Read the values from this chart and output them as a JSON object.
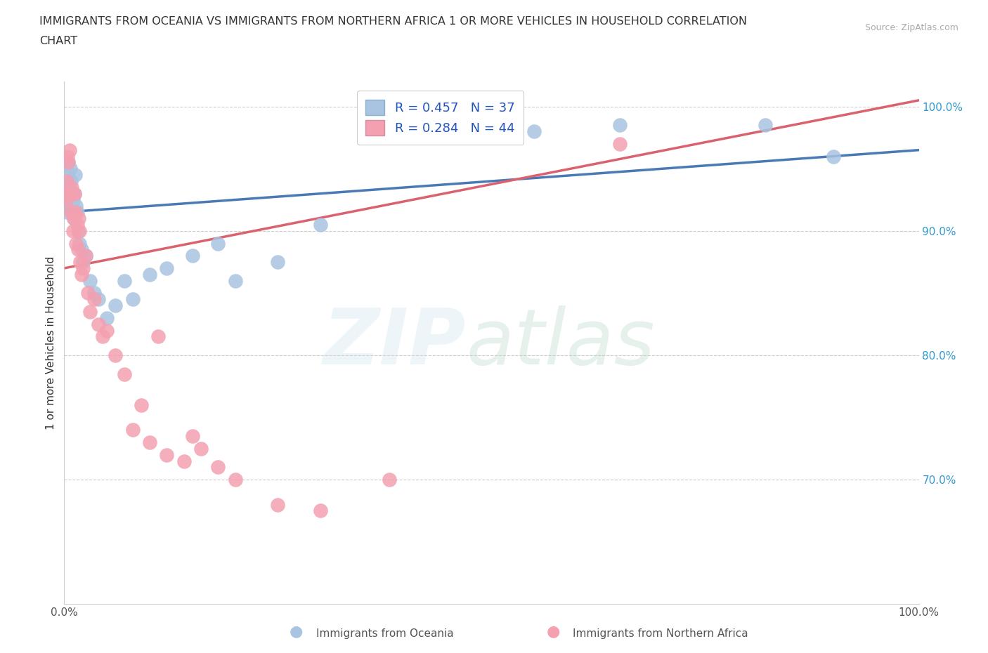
{
  "title": "IMMIGRANTS FROM OCEANIA VS IMMIGRANTS FROM NORTHERN AFRICA 1 OR MORE VEHICLES IN HOUSEHOLD CORRELATION\nCHART",
  "source": "Source: ZipAtlas.com",
  "ylabel": "1 or more Vehicles in Household",
  "xlim": [
    0.0,
    100.0
  ],
  "ylim": [
    60.0,
    102.0
  ],
  "blue_R": 0.457,
  "blue_N": 37,
  "pink_R": 0.284,
  "pink_N": 44,
  "blue_color": "#a8c4e0",
  "pink_color": "#f4a0b0",
  "blue_line_color": "#4a7ab5",
  "pink_line_color": "#d9626e",
  "legend_label_blue": "Immigrants from Oceania",
  "legend_label_pink": "Immigrants from Northern Africa",
  "blue_x": [
    0.2,
    0.3,
    0.4,
    0.5,
    0.6,
    0.7,
    0.8,
    0.9,
    1.0,
    1.1,
    1.2,
    1.3,
    1.4,
    1.5,
    1.6,
    1.8,
    2.0,
    2.2,
    2.5,
    3.0,
    3.5,
    4.0,
    5.0,
    6.0,
    7.0,
    8.0,
    10.0,
    12.0,
    15.0,
    18.0,
    20.0,
    25.0,
    30.0,
    55.0,
    65.0,
    82.0,
    90.0
  ],
  "blue_y": [
    92.0,
    91.5,
    94.5,
    95.5,
    93.5,
    95.0,
    94.0,
    93.0,
    92.5,
    91.0,
    93.0,
    94.5,
    92.0,
    91.5,
    90.0,
    89.0,
    88.5,
    87.5,
    88.0,
    86.0,
    85.0,
    84.5,
    83.0,
    84.0,
    86.0,
    84.5,
    86.5,
    87.0,
    88.0,
    89.0,
    86.0,
    87.5,
    90.5,
    98.0,
    98.5,
    98.5,
    96.0
  ],
  "pink_x": [
    0.1,
    0.2,
    0.3,
    0.4,
    0.5,
    0.6,
    0.7,
    0.8,
    0.9,
    1.0,
    1.1,
    1.2,
    1.3,
    1.4,
    1.5,
    1.6,
    1.7,
    1.8,
    1.9,
    2.0,
    2.2,
    2.5,
    2.8,
    3.0,
    3.5,
    4.0,
    4.5,
    5.0,
    6.0,
    7.0,
    8.0,
    9.0,
    10.0,
    11.0,
    12.0,
    14.0,
    15.0,
    16.0,
    18.0,
    20.0,
    25.0,
    30.0,
    38.0,
    65.0
  ],
  "pink_y": [
    93.0,
    92.5,
    94.0,
    96.0,
    95.5,
    96.5,
    93.0,
    91.5,
    93.5,
    90.0,
    91.0,
    93.0,
    91.5,
    89.0,
    90.5,
    88.5,
    91.0,
    90.0,
    87.5,
    86.5,
    87.0,
    88.0,
    85.0,
    83.5,
    84.5,
    82.5,
    81.5,
    82.0,
    80.0,
    78.5,
    74.0,
    76.0,
    73.0,
    81.5,
    72.0,
    71.5,
    73.5,
    72.5,
    71.0,
    70.0,
    68.0,
    67.5,
    70.0,
    97.0
  ],
  "blue_trendline_x0": 0.0,
  "blue_trendline_x1": 100.0,
  "pink_trendline_x0": 0.0,
  "pink_trendline_x1": 100.0
}
